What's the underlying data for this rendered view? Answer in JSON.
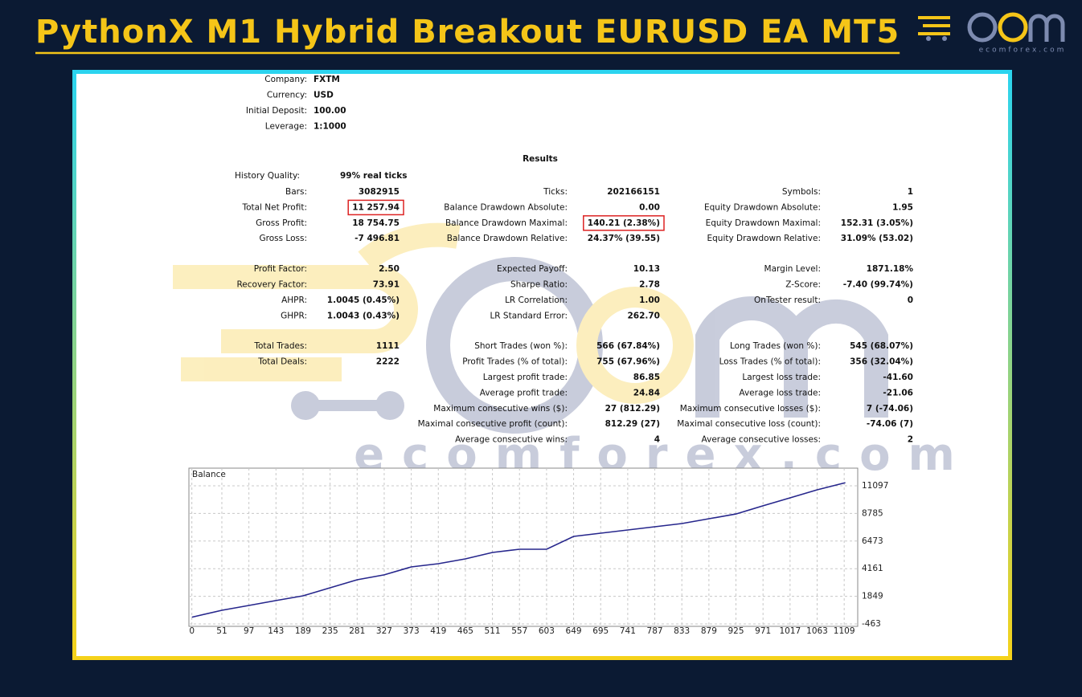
{
  "header": {
    "title": "PythonX M1 Hybrid Breakout EURUSD EA MT5",
    "logo_text": "ecomforex.com"
  },
  "watermark": "ecomforex.com",
  "info": [
    [
      "Company:",
      "FXTM"
    ],
    [
      "Currency:",
      "USD"
    ],
    [
      "Initial Deposit:",
      "100.00"
    ],
    [
      "Leverage:",
      "1:1000"
    ]
  ],
  "results": {
    "title": "Results",
    "history_quality": [
      "History Quality:",
      "99% real ticks"
    ],
    "groups": [
      [
        [
          [
            "Bars:",
            "3082915"
          ],
          [
            "Ticks:",
            "202166151"
          ],
          [
            "Symbols:",
            "1"
          ]
        ],
        [
          [
            "Total Net Profit:",
            "11 257.94"
          ],
          [
            "Balance Drawdown Absolute:",
            "0.00"
          ],
          [
            "Equity Drawdown Absolute:",
            "1.95"
          ]
        ],
        [
          [
            "Gross Profit:",
            "18 754.75"
          ],
          [
            "Balance Drawdown Maximal:",
            "140.21 (2.38%)"
          ],
          [
            "Equity Drawdown Maximal:",
            "152.31 (3.05%)"
          ]
        ],
        [
          [
            "Gross Loss:",
            "-7 496.81"
          ],
          [
            "Balance Drawdown Relative:",
            "24.37% (39.55)"
          ],
          [
            "Equity Drawdown Relative:",
            "31.09% (53.02)"
          ]
        ]
      ],
      [
        [
          [
            "Profit Factor:",
            "2.50"
          ],
          [
            "Expected Payoff:",
            "10.13"
          ],
          [
            "Margin Level:",
            "1871.18%"
          ]
        ],
        [
          [
            "Recovery Factor:",
            "73.91"
          ],
          [
            "Sharpe Ratio:",
            "2.78"
          ],
          [
            "Z-Score:",
            "-7.40 (99.74%)"
          ]
        ],
        [
          [
            "AHPR:",
            "1.0045 (0.45%)"
          ],
          [
            "LR Correlation:",
            "1.00"
          ],
          [
            "OnTester result:",
            "0"
          ]
        ],
        [
          [
            "GHPR:",
            "1.0043 (0.43%)"
          ],
          [
            "LR Standard Error:",
            "262.70"
          ],
          null
        ]
      ],
      [
        [
          [
            "Total Trades:",
            "1111"
          ],
          [
            "Short Trades (won %):",
            "566 (67.84%)"
          ],
          [
            "Long Trades (won %):",
            "545 (68.07%)"
          ]
        ],
        [
          [
            "Total Deals:",
            "2222"
          ],
          [
            "Profit Trades (% of total):",
            "755 (67.96%)"
          ],
          [
            "Loss Trades (% of total):",
            "356 (32.04%)"
          ]
        ],
        [
          null,
          [
            "Largest profit trade:",
            "86.85"
          ],
          [
            "Largest loss trade:",
            "-41.60"
          ]
        ],
        [
          null,
          [
            "Average profit trade:",
            "24.84"
          ],
          [
            "Average loss trade:",
            "-21.06"
          ]
        ],
        [
          null,
          [
            "Maximum consecutive wins ($):",
            "27 (812.29)"
          ],
          [
            "Maximum consecutive losses ($):",
            "7 (-74.06)"
          ]
        ],
        [
          null,
          [
            "Maximal consecutive profit (count):",
            "812.29 (27)"
          ],
          [
            "Maximal consecutive loss (count):",
            "-74.06 (7)"
          ]
        ],
        [
          null,
          [
            "Average consecutive wins:",
            "4"
          ],
          [
            "Average consecutive losses:",
            "2"
          ]
        ]
      ]
    ]
  },
  "chart_data": {
    "type": "line",
    "title": "Balance",
    "color": "#26268c",
    "x": [
      0,
      51,
      97,
      143,
      189,
      235,
      281,
      327,
      373,
      419,
      465,
      511,
      557,
      603,
      649,
      695,
      741,
      787,
      833,
      879,
      925,
      971,
      1017,
      1063,
      1111
    ],
    "values": [
      100,
      680,
      1080,
      1490,
      1890,
      2560,
      3230,
      3640,
      4310,
      4580,
      4980,
      5520,
      5790,
      5790,
      6860,
      7130,
      7400,
      7670,
      7940,
      8340,
      8740,
      9420,
      10090,
      10760,
      11358
    ],
    "xlim": [
      -5,
      1132
    ],
    "ylim": [
      -665,
      12575
    ],
    "xticks": [
      0,
      51,
      97,
      143,
      189,
      235,
      281,
      327,
      373,
      419,
      465,
      511,
      557,
      603,
      649,
      695,
      741,
      787,
      833,
      879,
      925,
      971,
      1017,
      1063,
      1109
    ],
    "yticks": [
      -463,
      1849,
      4161,
      6473,
      8785,
      11097
    ],
    "grid": true
  }
}
